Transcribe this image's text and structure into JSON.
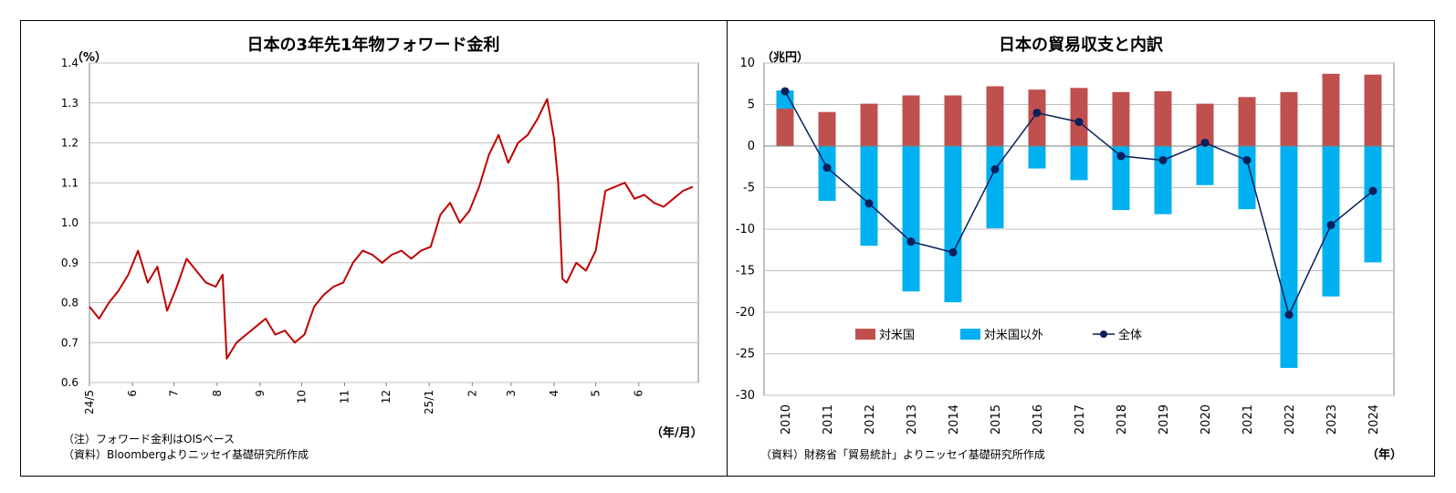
{
  "left_panel": {
    "title": "日本の3年先1年物フォワード金利",
    "unit": "（%）",
    "xunit": "（年/月）",
    "note1": "（注）フォワード金利はOISベース",
    "note2": "（資料）Bloombergよりニッセイ基礎研究所作成"
  },
  "right_panel": {
    "title": "日本の貿易収支と内訳",
    "unit": "（兆円）",
    "xunit": "（年）",
    "note1": "（資料）財務省「貿易統計」よりニッセイ基礎研究所作成"
  },
  "chart_data": [
    {
      "type": "line",
      "title": "日本の3年先1年物フォワード金利",
      "ylabel": "（%）",
      "xlabel": "（年/月）",
      "ylim": [
        0.6,
        1.4
      ],
      "yticks": [
        0.6,
        0.7,
        0.8,
        0.9,
        1.0,
        1.1,
        1.2,
        1.3,
        1.4
      ],
      "xticks": [
        "24/5",
        "6",
        "7",
        "8",
        "9",
        "10",
        "11",
        "12",
        "25/1",
        "2",
        "3",
        "4",
        "5",
        "6"
      ],
      "color": "#c00000",
      "series": [
        {
          "x": [
            "2024-05-01",
            "2024-05-08",
            "2024-05-15",
            "2024-05-22",
            "2024-05-29",
            "2024-06-05",
            "2024-06-12",
            "2024-06-19",
            "2024-06-26",
            "2024-07-03",
            "2024-07-10",
            "2024-07-17",
            "2024-07-24",
            "2024-07-31",
            "2024-08-05",
            "2024-08-08",
            "2024-08-15",
            "2024-08-22",
            "2024-08-29",
            "2024-09-05",
            "2024-09-12",
            "2024-09-19",
            "2024-09-26",
            "2024-10-03",
            "2024-10-10",
            "2024-10-17",
            "2024-10-24",
            "2024-10-31",
            "2024-11-07",
            "2024-11-14",
            "2024-11-21",
            "2024-11-28",
            "2024-12-05",
            "2024-12-12",
            "2024-12-19",
            "2024-12-26",
            "2025-01-02",
            "2025-01-09",
            "2025-01-16",
            "2025-01-23",
            "2025-01-30",
            "2025-02-06",
            "2025-02-13",
            "2025-02-20",
            "2025-02-27",
            "2025-03-06",
            "2025-03-13",
            "2025-03-20",
            "2025-03-27",
            "2025-04-01",
            "2025-04-04",
            "2025-04-07",
            "2025-04-10",
            "2025-04-17",
            "2025-04-24",
            "2025-05-01",
            "2025-05-08",
            "2025-05-15",
            "2025-05-22",
            "2025-05-29",
            "2025-06-05",
            "2025-06-12",
            "2025-06-19",
            "2025-06-26",
            "2025-07-03",
            "2025-07-10"
          ],
          "values": [
            0.79,
            0.76,
            0.8,
            0.83,
            0.87,
            0.93,
            0.85,
            0.89,
            0.78,
            0.84,
            0.91,
            0.88,
            0.85,
            0.84,
            0.87,
            0.66,
            0.7,
            0.72,
            0.74,
            0.76,
            0.72,
            0.73,
            0.7,
            0.72,
            0.79,
            0.82,
            0.84,
            0.85,
            0.9,
            0.93,
            0.92,
            0.9,
            0.92,
            0.93,
            0.91,
            0.93,
            0.94,
            1.02,
            1.05,
            1.0,
            1.03,
            1.09,
            1.17,
            1.22,
            1.15,
            1.2,
            1.22,
            1.26,
            1.31,
            1.21,
            1.1,
            0.86,
            0.85,
            0.9,
            0.88,
            0.93,
            1.08,
            1.09,
            1.1,
            1.06,
            1.07,
            1.05,
            1.04,
            1.06,
            1.08,
            1.09
          ]
        }
      ]
    },
    {
      "type": "bar",
      "title": "日本の貿易収支と内訳",
      "ylabel": "（兆円）",
      "xlabel": "（年）",
      "ylim": [
        -30,
        10
      ],
      "yticks": [
        -30,
        -25,
        -20,
        -15,
        -10,
        -5,
        0,
        5,
        10
      ],
      "categories": [
        "2010",
        "2011",
        "2012",
        "2013",
        "2014",
        "2015",
        "2016",
        "2017",
        "2018",
        "2019",
        "2020",
        "2021",
        "2022",
        "2023",
        "2024"
      ],
      "legend_position": "lower-left",
      "series": [
        {
          "name": "対米国",
          "kind": "bar",
          "color": "#c0504d",
          "values": [
            4.5,
            4.1,
            5.1,
            6.1,
            6.1,
            7.2,
            6.8,
            7.0,
            6.5,
            6.6,
            5.1,
            5.9,
            6.5,
            8.7,
            8.6
          ]
        },
        {
          "name": "対米国以外",
          "kind": "bar",
          "color": "#00b0f0",
          "values": [
            2.2,
            -6.6,
            -12.0,
            -17.5,
            -18.8,
            -9.9,
            -2.7,
            -4.1,
            -7.7,
            -8.2,
            -4.7,
            -7.6,
            -26.7,
            -18.1,
            -14.0
          ]
        },
        {
          "name": "全体",
          "kind": "line",
          "color": "#0b1f5c",
          "values": [
            6.6,
            -2.6,
            -6.9,
            -11.5,
            -12.8,
            -2.8,
            4.0,
            2.9,
            -1.2,
            -1.7,
            0.4,
            -1.7,
            -20.3,
            -9.5,
            -5.4
          ]
        }
      ]
    }
  ]
}
